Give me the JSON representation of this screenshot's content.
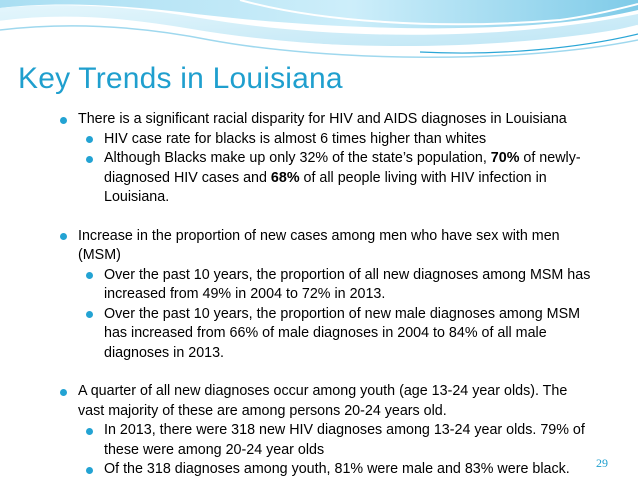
{
  "slide": {
    "title": "Key Trends in Louisiana",
    "page_number": "29",
    "accent_color": "#1f9fce"
  },
  "bullets": {
    "b1": "There is a significant racial disparity for HIV and AIDS diagnoses in Louisiana",
    "b1_1": "HIV case rate for blacks is almost 6 times higher than whites",
    "b1_2_pre": "Although Blacks make up only 32% of the state’s population, ",
    "b1_2_bold1": "70%",
    "b1_2_mid": " of newly-diagnosed HIV cases and ",
    "b1_2_bold2": "68%",
    "b1_2_post": " of all people living with HIV infection in Louisiana.",
    "b2": "Increase in the proportion of new cases among men who have sex with men (MSM)",
    "b2_1": "Over the past 10 years, the proportion of all new diagnoses among MSM has increased from 49% in 2004 to 72% in 2013.",
    "b2_2": "Over the past 10 years, the proportion of new male diagnoses among MSM has increased from 66% of male diagnoses in 2004 to 84% of all male diagnoses in 2013.",
    "b3": "A quarter of all new diagnoses occur among youth (age 13-24 year olds). The vast majority of these are among persons 20-24 years old.",
    "b3_1": "In 2013, there were 318 new HIV diagnoses among 13-24 year olds. 79% of these were among 20-24 year olds",
    "b3_2": "Of the 318 diagnoses among youth, 81% were male and 83% were black."
  }
}
